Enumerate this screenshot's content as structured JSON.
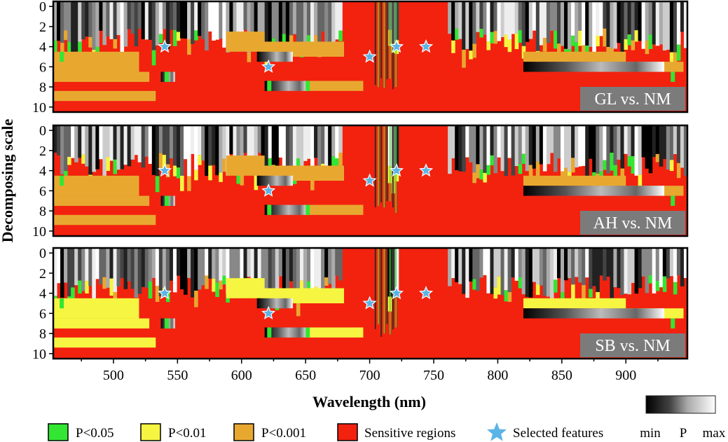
{
  "chart_data": {
    "type": "heatmap",
    "xlabel": "Wavelength (nm)",
    "ylabel": "Decomposing scale",
    "x_ticks": [
      500,
      550,
      600,
      650,
      700,
      750,
      800,
      850,
      900
    ],
    "x_range": [
      453,
      948
    ],
    "y_ticks": [
      0,
      2,
      4,
      6,
      8,
      10
    ],
    "y_range": [
      -0.5,
      10.5
    ],
    "colors": {
      "p005": "#33e633",
      "p001": "#f5f542",
      "p0001": "#e8a830",
      "sensitive": "#f2220f",
      "star": "#5ab4e6"
    },
    "panels": [
      {
        "label": "GL vs. NM",
        "selected_features": [
          {
            "wavelength": 540,
            "scale": 4
          },
          {
            "wavelength": 621,
            "scale": 6
          },
          {
            "wavelength": 700,
            "scale": 5
          },
          {
            "wavelength": 721,
            "scale": 4
          },
          {
            "wavelength": 744,
            "scale": 4
          }
        ]
      },
      {
        "label": "AH vs. NM",
        "selected_features": [
          {
            "wavelength": 540,
            "scale": 4
          },
          {
            "wavelength": 621,
            "scale": 6
          },
          {
            "wavelength": 700,
            "scale": 5
          },
          {
            "wavelength": 721,
            "scale": 4
          },
          {
            "wavelength": 744,
            "scale": 4
          }
        ]
      },
      {
        "label": "SB vs. NM",
        "selected_features": [
          {
            "wavelength": 540,
            "scale": 4
          },
          {
            "wavelength": 621,
            "scale": 6
          },
          {
            "wavelength": 700,
            "scale": 5
          },
          {
            "wavelength": 721,
            "scale": 4
          },
          {
            "wavelength": 744,
            "scale": 4
          }
        ]
      }
    ],
    "legend": [
      {
        "label": "P<0.05",
        "color": "#33e633"
      },
      {
        "label": "P<0.01",
        "color": "#f5f542"
      },
      {
        "label": "P<0.001",
        "color": "#e8a830"
      },
      {
        "label": "Sensitive regions",
        "color": "#f2220f"
      },
      {
        "label": "Selected features",
        "color": "#5ab4e6"
      }
    ],
    "colorbar": {
      "min_label": "min",
      "mid_label": "P",
      "max_label": "max"
    }
  }
}
